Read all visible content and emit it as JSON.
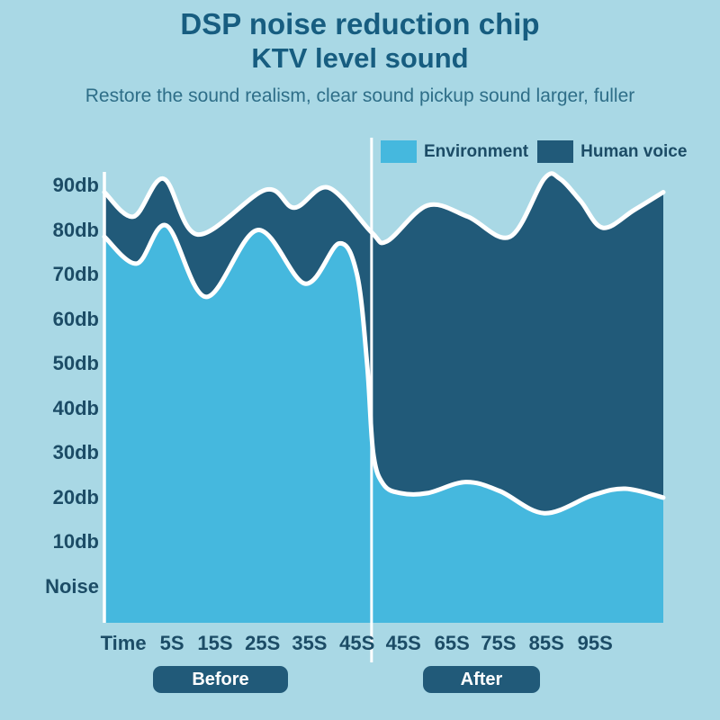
{
  "header": {
    "title_line1": "DSP noise reduction chip",
    "title_line2": "KTV level sound",
    "tagline": "Restore the sound realism, clear sound pickup sound larger, fuller"
  },
  "legend": {
    "items": [
      {
        "label": "Environment",
        "color": "#45b8de"
      },
      {
        "label": "Human voice",
        "color": "#215a79"
      }
    ]
  },
  "buttons": {
    "before": "Before",
    "after": "After"
  },
  "colors": {
    "background": "#a9d8e5",
    "environment_fill": "#45b8de",
    "human_voice_fill": "#215a79",
    "curve_stroke": "#ffffff",
    "axis_line": "#ffffff",
    "divider_line": "#ffffff",
    "title_text": "#175d80",
    "tagline_text": "#2e6e88",
    "axis_text": "#1c4c66",
    "button_bg": "#215a79",
    "button_text": "#ffffff"
  },
  "chart_data": {
    "type": "area",
    "title": "DSP noise reduction chip — KTV level sound",
    "legend_position": "top-right",
    "grid": false,
    "y_unit": "db",
    "ylim": [
      0,
      95
    ],
    "y_ticks": [
      {
        "label": "90db",
        "db": 90
      },
      {
        "label": "80db",
        "db": 80
      },
      {
        "label": "70db",
        "db": 70
      },
      {
        "label": "60db",
        "db": 60
      },
      {
        "label": "50db",
        "db": 50
      },
      {
        "label": "40db",
        "db": 40
      },
      {
        "label": "30db",
        "db": 30
      },
      {
        "label": "20db",
        "db": 20
      },
      {
        "label": "10db",
        "db": 10
      },
      {
        "label": "Noise",
        "db": 0
      }
    ],
    "x_ticks": [
      {
        "label": "Time",
        "pos": 0.034
      },
      {
        "label": "5S",
        "pos": 0.121
      },
      {
        "label": "15S",
        "pos": 0.198
      },
      {
        "label": "25S",
        "pos": 0.283
      },
      {
        "label": "35S",
        "pos": 0.367
      },
      {
        "label": "45S",
        "pos": 0.452
      },
      {
        "label": "45S",
        "pos": 0.535
      },
      {
        "label": "65S",
        "pos": 0.622
      },
      {
        "label": "75S",
        "pos": 0.705
      },
      {
        "label": "85S",
        "pos": 0.791
      },
      {
        "label": "95S",
        "pos": 0.878
      }
    ],
    "divider_pos": 0.478,
    "annotation": "divider separates Before (noisy environment) and After (noise reduced) segments",
    "series": [
      {
        "name": "Human voice",
        "color": "#215a79",
        "points": [
          [
            0.0,
            88.5
          ],
          [
            0.052,
            83.0
          ],
          [
            0.106,
            91.5
          ],
          [
            0.167,
            79.0
          ],
          [
            0.288,
            89.0
          ],
          [
            0.34,
            85.0
          ],
          [
            0.401,
            89.5
          ],
          [
            0.478,
            79.5
          ],
          [
            0.506,
            77.5
          ],
          [
            0.578,
            85.5
          ],
          [
            0.65,
            83.0
          ],
          [
            0.726,
            78.5
          ],
          [
            0.787,
            91.5
          ],
          [
            0.815,
            91.5
          ],
          [
            0.852,
            86.5
          ],
          [
            0.892,
            80.5
          ],
          [
            0.948,
            84.5
          ],
          [
            1.0,
            88.5
          ]
        ]
      },
      {
        "name": "Environment",
        "color": "#45b8de",
        "points": [
          [
            0.0,
            78.5
          ],
          [
            0.058,
            72.5
          ],
          [
            0.111,
            81.0
          ],
          [
            0.182,
            65.0
          ],
          [
            0.274,
            80.0
          ],
          [
            0.359,
            68.0
          ],
          [
            0.42,
            77.0
          ],
          [
            0.452,
            70.0
          ],
          [
            0.47,
            50.0
          ],
          [
            0.481,
            30.0
          ],
          [
            0.499,
            23.0
          ],
          [
            0.53,
            21.0
          ],
          [
            0.578,
            21.0
          ],
          [
            0.646,
            23.5
          ],
          [
            0.707,
            21.5
          ],
          [
            0.787,
            16.5
          ],
          [
            0.873,
            20.5
          ],
          [
            0.932,
            22.0
          ],
          [
            1.0,
            20.0
          ]
        ]
      }
    ]
  }
}
